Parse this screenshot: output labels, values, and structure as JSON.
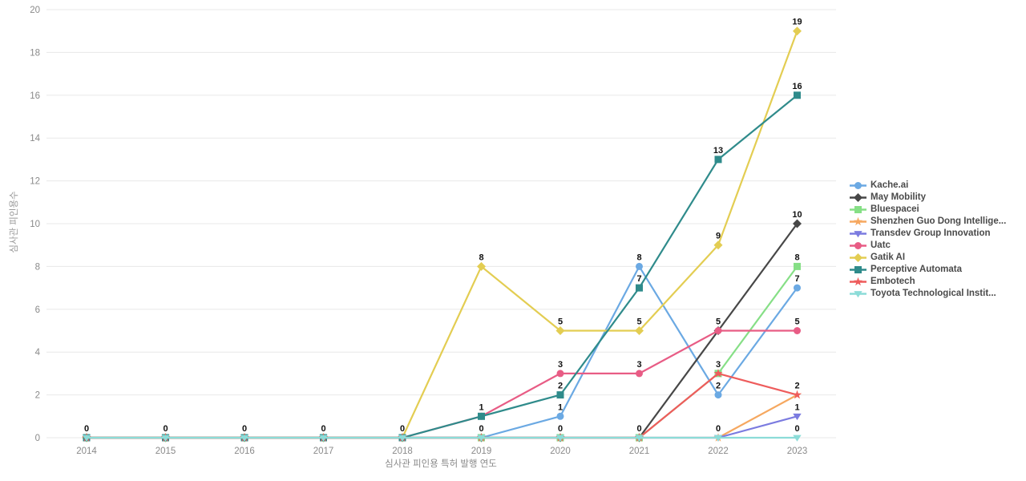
{
  "chart_data": {
    "type": "line",
    "title": "",
    "xlabel": "심사관 피인용 특허 발행 연도",
    "ylabel": "심사관 피인용수",
    "categories": [
      "2014",
      "2015",
      "2016",
      "2017",
      "2018",
      "2019",
      "2020",
      "2021",
      "2022",
      "2023"
    ],
    "ylim": [
      0,
      20
    ],
    "ytick_step": 2,
    "grid": "horizontal",
    "legend_position": "right",
    "point_labels": "shown above every point, duplicates merged",
    "series": [
      {
        "name": "Kache.ai",
        "color": "#6BA9E3",
        "marker": "circle",
        "values": [
          0,
          0,
          0,
          0,
          0,
          0,
          1,
          8,
          2,
          7
        ]
      },
      {
        "name": "May Mobility",
        "color": "#474747",
        "marker": "diamond",
        "values": [
          0,
          0,
          0,
          0,
          0,
          0,
          0,
          0,
          5,
          10
        ]
      },
      {
        "name": "Bluespacei",
        "color": "#86DF86",
        "marker": "square",
        "values": [
          0,
          0,
          0,
          0,
          0,
          0,
          0,
          0,
          3,
          8
        ]
      },
      {
        "name": "Shenzhen Guo Dong Intellige...",
        "color": "#F6A860",
        "marker": "star",
        "values": [
          0,
          0,
          0,
          0,
          0,
          0,
          0,
          0,
          0,
          2
        ]
      },
      {
        "name": "Transdev Group Innovation",
        "color": "#7B7BE0",
        "marker": "triangle-down",
        "values": [
          0,
          0,
          0,
          0,
          0,
          0,
          0,
          0,
          0,
          1
        ]
      },
      {
        "name": "Uatc",
        "color": "#E85C85",
        "marker": "circle",
        "values": [
          0,
          0,
          0,
          0,
          0,
          1,
          3,
          3,
          5,
          5
        ]
      },
      {
        "name": "Gatik AI",
        "color": "#E3CD52",
        "marker": "diamond",
        "values": [
          0,
          0,
          0,
          0,
          0,
          8,
          5,
          5,
          9,
          19
        ]
      },
      {
        "name": "Perceptive Automata",
        "color": "#2F8B8B",
        "marker": "square",
        "values": [
          0,
          0,
          0,
          0,
          0,
          1,
          2,
          7,
          13,
          16
        ]
      },
      {
        "name": "Embotech",
        "color": "#EE5C5C",
        "marker": "star",
        "values": [
          0,
          0,
          0,
          0,
          0,
          0,
          0,
          0,
          3,
          2
        ]
      },
      {
        "name": "Toyota Technological Instit...",
        "color": "#8CDCD8",
        "marker": "triangle-down",
        "values": [
          0,
          0,
          0,
          0,
          0,
          0,
          0,
          0,
          0,
          0
        ]
      }
    ]
  },
  "colors": {
    "background": "#ffffff",
    "gridline": "#e8e8e8",
    "tick_label": "#8a8a8a",
    "value_label": "#111111",
    "legend_text": "#4a4a4a"
  }
}
